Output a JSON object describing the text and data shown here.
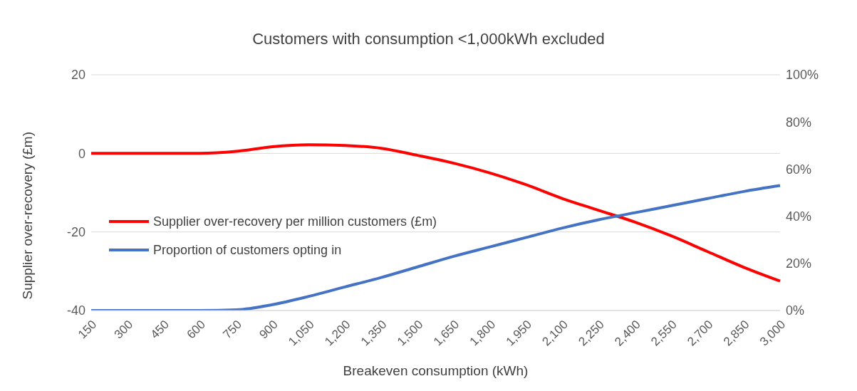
{
  "chart_data": {
    "type": "line",
    "title": "Customers with consumption <1,000kWh excluded",
    "xlabel": "Breakeven consumption (kWh)",
    "ylabel": "Supplier over-recovery (£m)",
    "categories": [
      "150",
      "300",
      "450",
      "600",
      "750",
      "900",
      "1,050",
      "1,200",
      "1,350",
      "1,500",
      "1,650",
      "1,800",
      "1,950",
      "2,100",
      "2,250",
      "2,400",
      "2,550",
      "2,700",
      "2,850",
      "3,000"
    ],
    "series": [
      {
        "name": "Supplier over-recovery per million customers (£m)",
        "color": "#ff0000",
        "values": [
          0,
          0,
          0,
          0,
          0.5,
          1.7,
          2.2,
          2,
          1.3,
          -0.5,
          -2.5,
          -5,
          -8,
          -11.5,
          -14.5,
          -17.5,
          -21,
          -25,
          -29,
          -32.5
        ]
      },
      {
        "name": "Proportion of customers opting in",
        "color": "#4472c4",
        "axis": "y2",
        "values": [
          0,
          0,
          0,
          0,
          0.3,
          2.5,
          6,
          10,
          14,
          18.5,
          23,
          27,
          31,
          35,
          38.5,
          41.5,
          44.5,
          47.5,
          50.5,
          53
        ]
      }
    ],
    "ylim": [
      -40,
      20
    ],
    "yticks": [
      -40,
      -20,
      0,
      20
    ],
    "y2lim": [
      0,
      100
    ],
    "y2ticks": [
      {
        "value": 0,
        "label": "0%"
      },
      {
        "value": 20,
        "label": "20%"
      },
      {
        "value": 40,
        "label": "40%"
      },
      {
        "value": 60,
        "label": "60%"
      },
      {
        "value": 80,
        "label": "80%"
      },
      {
        "value": 100,
        "label": "100%"
      }
    ],
    "grid": "y",
    "legend": "left",
    "marker": "none",
    "line_style": "solid"
  }
}
